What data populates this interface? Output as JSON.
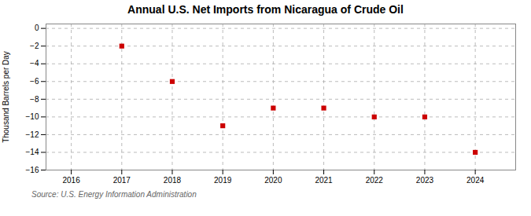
{
  "chart_data": {
    "type": "scatter",
    "title": "Annual U.S. Net Imports from Nicaragua of Crude Oil",
    "y_label": "Thousand Barrels per Day",
    "annotations": [
      "Source: U.S. Energy Information Administration"
    ],
    "x": [
      2017,
      2018,
      2019,
      2020,
      2021,
      2022,
      2023,
      2024
    ],
    "values": [
      -2,
      -6,
      -11,
      -9,
      -9,
      -10,
      -10,
      -14
    ],
    "color": "#cc0000",
    "marker": "square",
    "xlim": [
      2015.5,
      2024.8
    ],
    "ylim": [
      -16,
      0.5
    ],
    "xticks": [
      2016,
      2017,
      2018,
      2019,
      2020,
      2021,
      2022,
      2023,
      2024
    ],
    "yticks": [
      0,
      -2,
      -4,
      -6,
      -8,
      -10,
      -12,
      -14,
      -16
    ],
    "grid": true
  }
}
